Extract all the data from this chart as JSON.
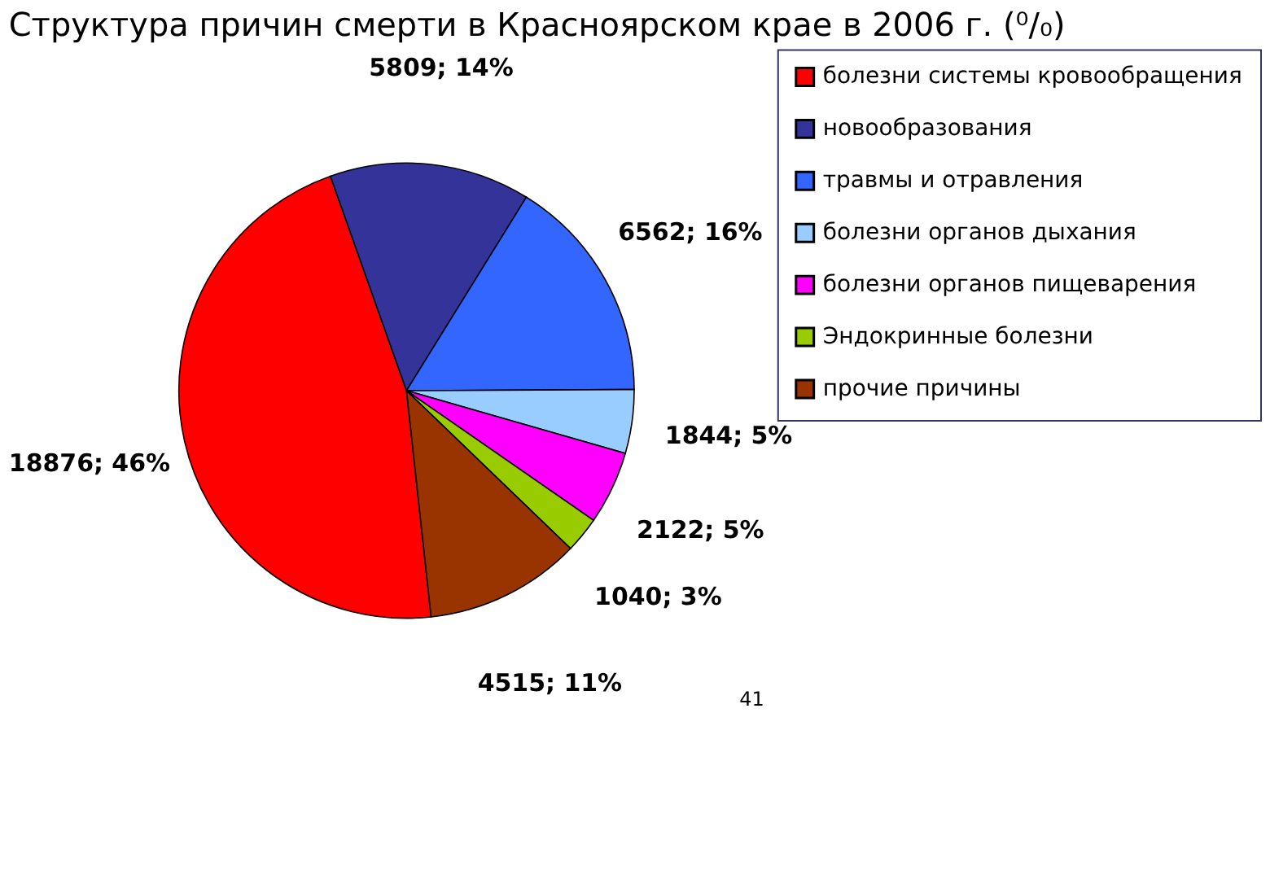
{
  "chart_data": {
    "type": "pie",
    "title": "Структура причин смерти в Красноярском крае в 2006 г. (⁰/₀)",
    "categories": [
      "болезни системы кровообращения",
      "новообразования",
      "травмы и отравления",
      "болезни органов дыхания",
      "болезни органов пищеварения",
      "Эндокринные болезни",
      "прочие причины"
    ],
    "values": [
      18876,
      5809,
      6562,
      1844,
      2122,
      1040,
      4515
    ],
    "colors": [
      "#ff0000",
      "#333399",
      "#3366ff",
      "#99ccff",
      "#ff00ff",
      "#99cc00",
      "#993300"
    ],
    "value_labels": [
      "18876; 46%",
      "5809; 14%",
      "6562; 16%",
      "1844; 5%",
      "2122; 5%",
      "1040; 3%",
      "4515; 11%"
    ],
    "legend": "right",
    "annotations": [
      "41"
    ]
  }
}
